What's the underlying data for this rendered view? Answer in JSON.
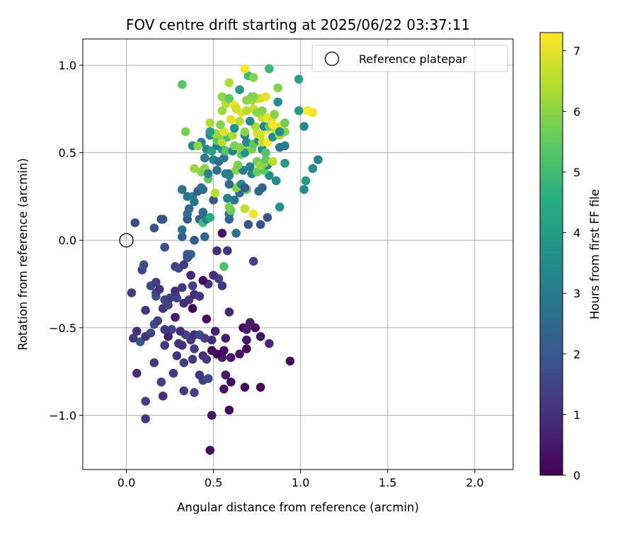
{
  "chart_data": {
    "type": "scatter",
    "title": "FOV centre drift starting at 2025/06/22 03:37:11",
    "xlabel": "Angular distance from reference (arcmin)",
    "ylabel": "Rotation from reference (arcmin)",
    "xlim": [
      -0.25,
      2.22
    ],
    "ylim": [
      -1.31,
      1.15
    ],
    "xticks": [
      0.0,
      0.5,
      1.0,
      1.5,
      2.0
    ],
    "xtick_labels": [
      "0.0",
      "0.5",
      "1.0",
      "1.5",
      "2.0"
    ],
    "yticks": [
      -1.0,
      -0.5,
      0.0,
      0.5,
      1.0
    ],
    "ytick_labels": [
      "−1.0",
      "−0.5",
      "0.0",
      "0.5",
      "1.0"
    ],
    "grid": true,
    "legend": {
      "placement": "top-right",
      "entries": [
        "Reference platepar"
      ]
    },
    "reference_point": {
      "x": 0.0,
      "y": 0.0,
      "label": "Reference platepar"
    },
    "colorbar": {
      "label": "Hours from first FF file",
      "colormap": "viridis",
      "range": [
        0,
        7.3
      ],
      "ticks": [
        0,
        1,
        2,
        3,
        4,
        5,
        6,
        7
      ],
      "tick_labels": [
        "0",
        "1",
        "2",
        "3",
        "4",
        "5",
        "6",
        "7"
      ]
    },
    "points": [
      [
        0.48,
        -1.2,
        0.3
      ],
      [
        0.11,
        -1.02,
        1.1
      ],
      [
        0.49,
        -1.0,
        0.5
      ],
      [
        0.59,
        -0.97,
        0.2
      ],
      [
        0.11,
        -0.92,
        1.4
      ],
      [
        0.21,
        -0.89,
        1.0
      ],
      [
        0.33,
        -0.86,
        1.2
      ],
      [
        0.39,
        -0.87,
        1.5
      ],
      [
        0.56,
        -0.85,
        0.4
      ],
      [
        0.68,
        -0.84,
        0.2
      ],
      [
        0.77,
        -0.84,
        0.1
      ],
      [
        0.6,
        -0.81,
        0.3
      ],
      [
        0.2,
        -0.81,
        1.3
      ],
      [
        0.44,
        -0.8,
        1.3
      ],
      [
        0.47,
        -0.79,
        1.6
      ],
      [
        0.42,
        -0.77,
        1.2
      ],
      [
        0.57,
        -0.77,
        0.5
      ],
      [
        0.06,
        -0.76,
        0.9
      ],
      [
        0.27,
        -0.76,
        1.1
      ],
      [
        0.33,
        -0.7,
        1.4
      ],
      [
        0.16,
        -0.7,
        1.2
      ],
      [
        0.94,
        -0.69,
        0.2
      ],
      [
        0.38,
        -0.68,
        1.2
      ],
      [
        0.55,
        -0.67,
        0.6
      ],
      [
        0.29,
        -0.66,
        1.0
      ],
      [
        0.44,
        -0.66,
        0.9
      ],
      [
        0.46,
        -0.68,
        1.2
      ],
      [
        0.6,
        -0.67,
        0.5
      ],
      [
        0.52,
        -0.65,
        0.1
      ],
      [
        0.65,
        -0.65,
        0.4
      ],
      [
        0.56,
        -0.63,
        0.3
      ],
      [
        0.69,
        -0.62,
        0.2
      ],
      [
        0.39,
        -0.62,
        1.3
      ],
      [
        0.49,
        -0.63,
        0.2
      ],
      [
        0.08,
        -0.58,
        2.0
      ],
      [
        0.22,
        -0.6,
        1.2
      ],
      [
        0.3,
        -0.59,
        1.1
      ],
      [
        0.32,
        -0.6,
        1.0
      ],
      [
        0.49,
        -0.57,
        0.9
      ],
      [
        0.82,
        -0.59,
        0.8
      ],
      [
        0.04,
        -0.56,
        1.2
      ],
      [
        0.11,
        -0.55,
        1.0
      ],
      [
        0.24,
        -0.55,
        0.6
      ],
      [
        0.34,
        -0.54,
        1.5
      ],
      [
        0.37,
        -0.57,
        1.3
      ],
      [
        0.39,
        -0.54,
        0.9
      ],
      [
        0.42,
        -0.54,
        1.6
      ],
      [
        0.45,
        -0.56,
        1.4
      ],
      [
        0.57,
        -0.56,
        0.6
      ],
      [
        0.69,
        -0.57,
        0.4
      ],
      [
        0.77,
        -0.55,
        0.3
      ],
      [
        0.06,
        -0.52,
        1.0
      ],
      [
        0.14,
        -0.53,
        1.5
      ],
      [
        0.26,
        -0.51,
        1.5
      ],
      [
        0.31,
        -0.52,
        0.9
      ],
      [
        0.22,
        -0.51,
        1.2
      ],
      [
        0.51,
        -0.52,
        0.7
      ],
      [
        0.67,
        -0.5,
        0.2
      ],
      [
        0.69,
        -0.51,
        0.6
      ],
      [
        0.74,
        -0.5,
        0.3
      ],
      [
        0.16,
        -0.48,
        1.7
      ],
      [
        0.18,
        -0.46,
        1.4
      ],
      [
        0.71,
        -0.47,
        0.5
      ],
      [
        0.46,
        -0.45,
        0.2
      ],
      [
        0.28,
        -0.44,
        0.6
      ],
      [
        0.59,
        -0.41,
        0.8
      ],
      [
        0.11,
        -0.4,
        1.1
      ],
      [
        0.21,
        -0.39,
        1.0
      ],
      [
        0.24,
        -0.37,
        1.5
      ],
      [
        0.38,
        -0.39,
        0.1
      ],
      [
        0.36,
        -0.34,
        1.3
      ],
      [
        0.33,
        -0.36,
        0.9
      ],
      [
        0.22,
        -0.34,
        1.6
      ],
      [
        0.25,
        -0.33,
        1.3
      ],
      [
        0.28,
        -0.31,
        1.5
      ],
      [
        0.29,
        -0.33,
        1.4
      ],
      [
        0.17,
        -0.32,
        1.9
      ],
      [
        0.39,
        -0.31,
        0.9
      ],
      [
        0.42,
        -0.32,
        1.1
      ],
      [
        0.03,
        -0.3,
        1.3
      ],
      [
        0.17,
        -0.3,
        1.5
      ],
      [
        0.19,
        -0.28,
        1.1
      ],
      [
        0.28,
        -0.29,
        0.9
      ],
      [
        0.32,
        -0.27,
        1.2
      ],
      [
        0.38,
        -0.26,
        1.4
      ],
      [
        0.47,
        -0.25,
        1.1
      ],
      [
        0.55,
        -0.26,
        1.1
      ],
      [
        0.14,
        -0.26,
        1.6
      ],
      [
        0.17,
        -0.24,
        1.3
      ],
      [
        0.44,
        -0.23,
        0.2
      ],
      [
        0.53,
        -0.22,
        1.5
      ],
      [
        0.37,
        -0.2,
        0.8
      ],
      [
        0.5,
        -0.2,
        1.0
      ],
      [
        0.09,
        -0.17,
        1.5
      ],
      [
        0.1,
        -0.14,
        1.8
      ],
      [
        0.28,
        -0.15,
        1.5
      ],
      [
        0.3,
        -0.16,
        1.7
      ],
      [
        0.33,
        -0.14,
        1.3
      ],
      [
        0.73,
        -0.12,
        1.4
      ],
      [
        0.56,
        -0.15,
        5.2
      ],
      [
        0.35,
        -0.08,
        2.0
      ],
      [
        0.37,
        -0.08,
        2.3
      ],
      [
        0.35,
        -0.1,
        1.8
      ],
      [
        0.22,
        -0.04,
        1.8
      ],
      [
        0.52,
        -0.06,
        1.0
      ],
      [
        0.58,
        -0.06,
        1.1
      ],
      [
        0.39,
        0.0,
        2.1
      ],
      [
        0.45,
        0.02,
        2.4
      ],
      [
        0.32,
        0.02,
        2.2
      ],
      [
        0.32,
        0.06,
        2.8
      ],
      [
        0.55,
        0.04,
        0.4
      ],
      [
        0.63,
        0.04,
        2.7
      ],
      [
        0.16,
        0.07,
        1.9
      ],
      [
        0.05,
        0.1,
        1.7
      ],
      [
        0.2,
        0.12,
        1.6
      ],
      [
        0.21,
        0.12,
        2.0
      ],
      [
        0.35,
        0.12,
        2.1
      ],
      [
        0.42,
        0.12,
        2.2
      ],
      [
        0.44,
        0.1,
        5.0
      ],
      [
        0.46,
        0.12,
        3.1
      ],
      [
        0.48,
        0.13,
        4.5
      ],
      [
        0.59,
        0.12,
        2.3
      ],
      [
        0.7,
        0.09,
        2.0
      ],
      [
        0.77,
        0.09,
        1.9
      ],
      [
        0.35,
        0.15,
        2.6
      ],
      [
        0.36,
        0.18,
        2.5
      ],
      [
        0.44,
        0.16,
        2.6
      ],
      [
        0.59,
        0.15,
        2.7
      ],
      [
        0.6,
        0.17,
        5.5
      ],
      [
        0.68,
        0.18,
        6.6
      ],
      [
        0.73,
        0.15,
        7.2
      ],
      [
        0.81,
        0.13,
        2.0
      ],
      [
        0.88,
        0.19,
        3.6
      ],
      [
        0.39,
        0.22,
        2.7
      ],
      [
        0.5,
        0.23,
        2.0
      ],
      [
        0.35,
        0.25,
        2.8
      ],
      [
        0.38,
        0.25,
        3.0
      ],
      [
        0.41,
        0.28,
        2.3
      ],
      [
        0.44,
        0.29,
        2.5
      ],
      [
        0.51,
        0.27,
        6.5
      ],
      [
        0.59,
        0.19,
        5.8
      ],
      [
        0.62,
        0.23,
        2.9
      ],
      [
        0.58,
        0.24,
        3.2
      ],
      [
        0.65,
        0.27,
        2.6
      ],
      [
        0.69,
        0.29,
        5.3
      ],
      [
        0.76,
        0.28,
        2.6
      ],
      [
        0.32,
        0.29,
        2.8
      ],
      [
        0.43,
        0.3,
        2.6
      ],
      [
        0.65,
        0.31,
        5.8
      ],
      [
        0.63,
        0.3,
        5.9
      ],
      [
        0.66,
        0.32,
        3.4
      ],
      [
        0.68,
        0.3,
        2.0
      ],
      [
        0.78,
        0.3,
        2.3
      ],
      [
        0.82,
        0.37,
        3.5
      ],
      [
        0.86,
        0.34,
        3.5
      ],
      [
        1.02,
        0.29,
        3.5
      ],
      [
        0.59,
        0.32,
        2.5
      ],
      [
        0.57,
        0.38,
        3.0
      ],
      [
        0.47,
        0.35,
        5.5
      ],
      [
        0.43,
        0.39,
        5.9
      ],
      [
        0.45,
        0.41,
        6.0
      ],
      [
        0.47,
        0.38,
        3.2
      ],
      [
        0.52,
        0.4,
        2.8
      ],
      [
        0.39,
        0.41,
        6.2
      ],
      [
        0.59,
        0.37,
        3.2
      ],
      [
        0.59,
        0.38,
        3.1
      ],
      [
        0.63,
        0.4,
        6.0
      ],
      [
        0.67,
        0.4,
        3.0
      ],
      [
        0.72,
        0.38,
        3.4
      ],
      [
        0.75,
        0.39,
        5.6
      ],
      [
        0.79,
        0.4,
        5.4
      ],
      [
        0.81,
        0.43,
        3.4
      ],
      [
        0.91,
        0.44,
        4.0
      ],
      [
        1.03,
        0.34,
        4.0
      ],
      [
        1.07,
        0.41,
        3.5
      ],
      [
        1.1,
        0.46,
        3.3
      ],
      [
        0.45,
        0.47,
        3.0
      ],
      [
        0.5,
        0.46,
        3.4
      ],
      [
        0.53,
        0.45,
        2.7
      ],
      [
        0.56,
        0.47,
        2.9
      ],
      [
        0.64,
        0.43,
        5.8
      ],
      [
        0.71,
        0.42,
        3.3
      ],
      [
        0.75,
        0.45,
        5.7
      ],
      [
        0.77,
        0.43,
        6.2
      ],
      [
        0.79,
        0.44,
        6.0
      ],
      [
        0.8,
        0.46,
        5.5
      ],
      [
        0.84,
        0.45,
        6.5
      ],
      [
        0.46,
        0.52,
        3.4
      ],
      [
        0.49,
        0.51,
        4.2
      ],
      [
        0.52,
        0.54,
        3.0
      ],
      [
        0.55,
        0.52,
        3.6
      ],
      [
        0.57,
        0.51,
        5.4
      ],
      [
        0.61,
        0.51,
        3.3
      ],
      [
        0.66,
        0.49,
        5.6
      ],
      [
        0.67,
        0.53,
        6.2
      ],
      [
        0.68,
        0.5,
        3.7
      ],
      [
        0.72,
        0.52,
        5.8
      ],
      [
        0.78,
        0.52,
        3.6
      ],
      [
        0.8,
        0.5,
        5.3
      ],
      [
        0.88,
        0.53,
        2.8
      ],
      [
        0.91,
        0.54,
        3.0
      ],
      [
        0.43,
        0.56,
        3.1
      ],
      [
        0.52,
        0.57,
        5.5
      ],
      [
        0.55,
        0.56,
        6.5
      ],
      [
        0.62,
        0.54,
        5.8
      ],
      [
        0.65,
        0.53,
        5.9
      ],
      [
        0.69,
        0.56,
        3.4
      ],
      [
        0.73,
        0.55,
        5.4
      ],
      [
        0.76,
        0.57,
        3.4
      ],
      [
        0.78,
        0.56,
        6.6
      ],
      [
        0.81,
        0.56,
        7.3
      ],
      [
        0.84,
        0.59,
        3.6
      ],
      [
        0.88,
        0.6,
        6.3
      ],
      [
        0.91,
        0.62,
        5.9
      ],
      [
        0.38,
        0.54,
        3.4
      ],
      [
        0.41,
        0.54,
        6.0
      ],
      [
        0.48,
        0.6,
        3.3
      ],
      [
        0.51,
        0.61,
        6.2
      ],
      [
        0.54,
        0.6,
        6.1
      ],
      [
        0.58,
        0.59,
        5.2
      ],
      [
        0.61,
        0.6,
        6.4
      ],
      [
        0.68,
        0.6,
        3.3
      ],
      [
        0.75,
        0.61,
        6.9
      ],
      [
        0.77,
        0.6,
        6.7
      ],
      [
        0.8,
        0.63,
        7.2
      ],
      [
        0.86,
        0.63,
        6.2
      ],
      [
        0.88,
        0.65,
        6.9
      ],
      [
        0.91,
        0.67,
        5.7
      ],
      [
        0.48,
        0.62,
        4.1
      ],
      [
        0.56,
        0.62,
        6.9
      ],
      [
        0.62,
        0.64,
        3.7
      ],
      [
        0.68,
        0.62,
        6.0
      ],
      [
        0.74,
        0.65,
        6.4
      ],
      [
        0.79,
        0.65,
        3.3
      ],
      [
        0.82,
        0.65,
        5.5
      ],
      [
        0.86,
        0.64,
        6.8
      ],
      [
        0.88,
        0.62,
        3.6
      ],
      [
        0.34,
        0.62,
        5.8
      ],
      [
        0.48,
        0.67,
        6.4
      ],
      [
        0.54,
        0.66,
        5.9
      ],
      [
        0.65,
        0.68,
        6.5
      ],
      [
        0.71,
        0.68,
        3.5
      ],
      [
        0.78,
        0.7,
        6.6
      ],
      [
        0.81,
        0.7,
        7.1
      ],
      [
        0.84,
        0.7,
        6.9
      ],
      [
        0.84,
        0.66,
        7.2
      ],
      [
        0.55,
        0.74,
        6.2
      ],
      [
        0.6,
        0.69,
        6.9
      ],
      [
        0.63,
        0.76,
        7.3
      ],
      [
        0.66,
        0.73,
        7.0
      ],
      [
        0.69,
        0.74,
        6.5
      ],
      [
        0.73,
        0.75,
        6.7
      ],
      [
        0.75,
        0.73,
        6.0
      ],
      [
        0.78,
        0.74,
        5.9
      ],
      [
        0.85,
        0.72,
        6.0
      ],
      [
        0.87,
        0.79,
        3.5
      ],
      [
        0.99,
        0.74,
        4.0
      ],
      [
        1.02,
        0.65,
        3.5
      ],
      [
        1.04,
        0.74,
        7.3
      ],
      [
        1.07,
        0.73,
        7.2
      ],
      [
        0.57,
        0.78,
        6.5
      ],
      [
        0.62,
        0.77,
        7.1
      ],
      [
        0.63,
        0.75,
        6.8
      ],
      [
        0.72,
        0.8,
        6.3
      ],
      [
        0.75,
        0.81,
        6.5
      ],
      [
        0.77,
        0.81,
        6.8
      ],
      [
        0.8,
        0.82,
        7.0
      ],
      [
        0.72,
        0.82,
        5.6
      ],
      [
        0.69,
        0.8,
        6.0
      ],
      [
        0.73,
        0.82,
        5.9
      ],
      [
        0.55,
        0.82,
        6.0
      ],
      [
        0.59,
        0.81,
        5.5
      ],
      [
        0.32,
        0.89,
        5.3
      ],
      [
        0.59,
        0.9,
        6.4
      ],
      [
        0.65,
        0.86,
        4.0
      ],
      [
        0.7,
        0.94,
        4.9
      ],
      [
        0.73,
        0.93,
        5.9
      ],
      [
        0.68,
        0.98,
        7.3
      ],
      [
        0.82,
        0.98,
        4.9
      ],
      [
        0.87,
        0.87,
        5.9
      ],
      [
        0.99,
        0.92,
        4.2
      ]
    ]
  }
}
